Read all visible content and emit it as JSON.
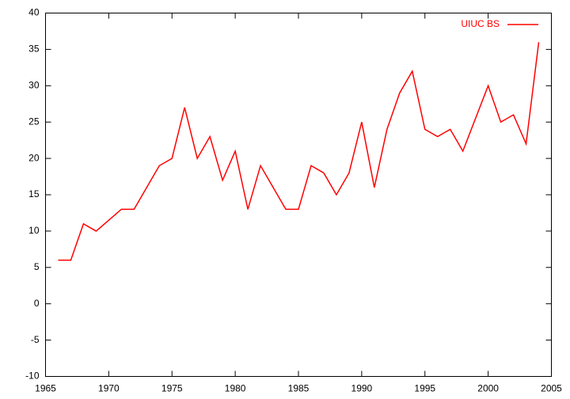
{
  "chart_data": {
    "type": "line",
    "x": [
      1966,
      1967,
      1968,
      1969,
      1971,
      1972,
      1974,
      1975,
      1976,
      1977,
      1978,
      1979,
      1980,
      1981,
      1982,
      1984,
      1985,
      1986,
      1987,
      1988,
      1989,
      1990,
      1991,
      1992,
      1993,
      1994,
      1995,
      1996,
      1997,
      1998,
      2000,
      2001,
      2002,
      2003,
      2004
    ],
    "series": [
      {
        "name": "UIUC BS",
        "color": "#ff0000",
        "values": [
          6,
          6,
          11,
          10,
          13,
          13,
          19,
          20,
          27,
          20,
          23,
          17,
          21,
          13,
          19,
          13,
          13,
          19,
          18,
          15,
          18,
          25,
          16,
          24,
          29,
          32,
          24,
          23,
          24,
          21,
          30,
          25,
          26,
          22,
          36
        ]
      }
    ],
    "xlim": [
      1965,
      2005
    ],
    "xticks": [
      1965,
      1970,
      1975,
      1980,
      1985,
      1990,
      1995,
      2000,
      2005
    ],
    "ylim": [
      -10,
      40
    ],
    "yticks": [
      -10,
      -5,
      0,
      5,
      10,
      15,
      20,
      25,
      30,
      35,
      40
    ],
    "legend": "top-right"
  }
}
